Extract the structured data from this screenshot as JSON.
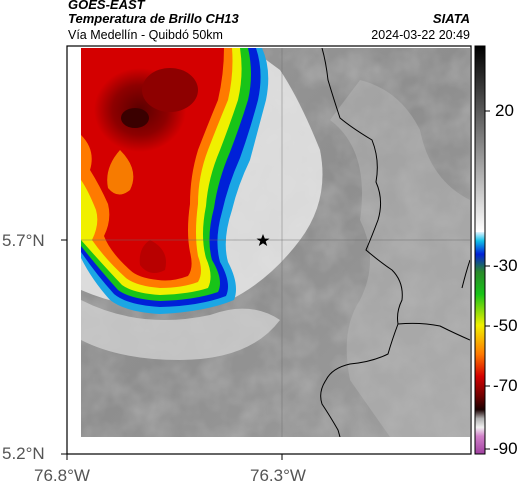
{
  "header": {
    "source": "GOES-EAST",
    "product": "Temperatura de Brillo CH13",
    "subtitle": "Vía Medellín - Quibdó 50km",
    "organization": "SIATA",
    "datetime": "2024-03-22 20:49"
  },
  "map": {
    "lat_ticks": [
      "5.7°N",
      "5.2°N"
    ],
    "lon_ticks": [
      "76.8°W",
      "76.3°W"
    ],
    "marker": "star-icon"
  },
  "colorbar": {
    "tick_labels": [
      "20",
      "-30",
      "-50",
      "-70",
      "-90"
    ]
  },
  "colors": {
    "cloud_red": "#d40000",
    "cloud_darkred": "#6e0000",
    "cloud_yellow": "#f0f000",
    "cloud_green": "#18c418",
    "cloud_blue": "#0020d8",
    "cloud_cyan": "#10c0e8"
  }
}
